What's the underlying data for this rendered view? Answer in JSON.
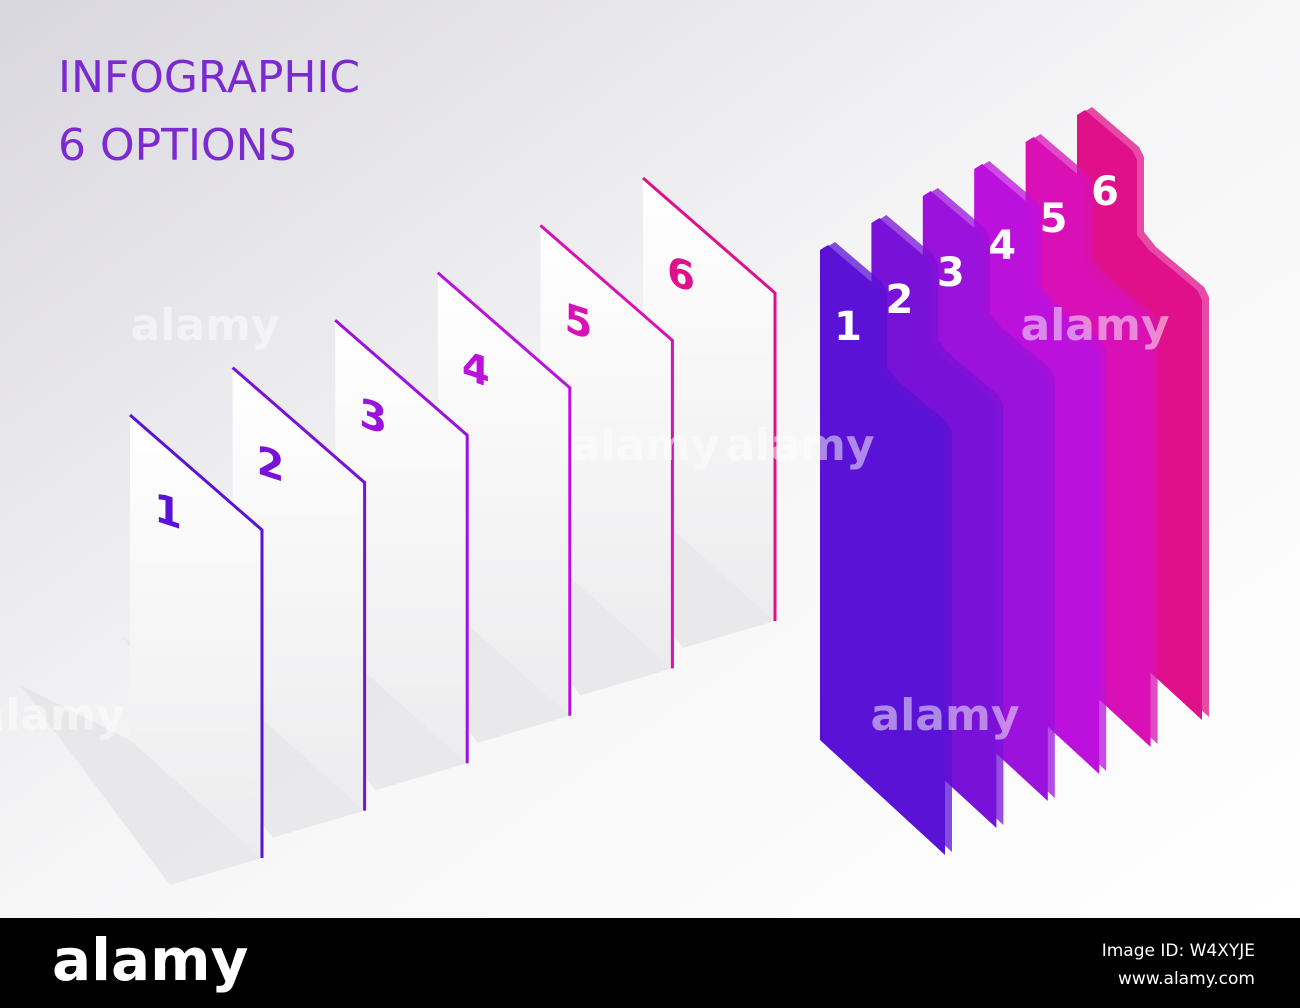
{
  "header": {
    "title": "INFOGRAPHIC",
    "subtitle": "6 OPTIONS"
  },
  "white_panels": {
    "labels": [
      "1",
      "2",
      "3",
      "4",
      "5",
      "6"
    ]
  },
  "color_panels": {
    "labels": [
      "1",
      "2",
      "3",
      "4",
      "5",
      "6"
    ],
    "colors": [
      "#5a12d6",
      "#7812d8",
      "#9a12dc",
      "#bc10dc",
      "#d810b6",
      "#e0108a"
    ]
  },
  "watermarks": [
    "alamy",
    "alamy",
    "alamy",
    "alamy",
    "alamy",
    "alamy"
  ],
  "footer": {
    "brand": "alamy",
    "image_id": "Image ID: W4XYJE",
    "url": "www.alamy.com"
  }
}
